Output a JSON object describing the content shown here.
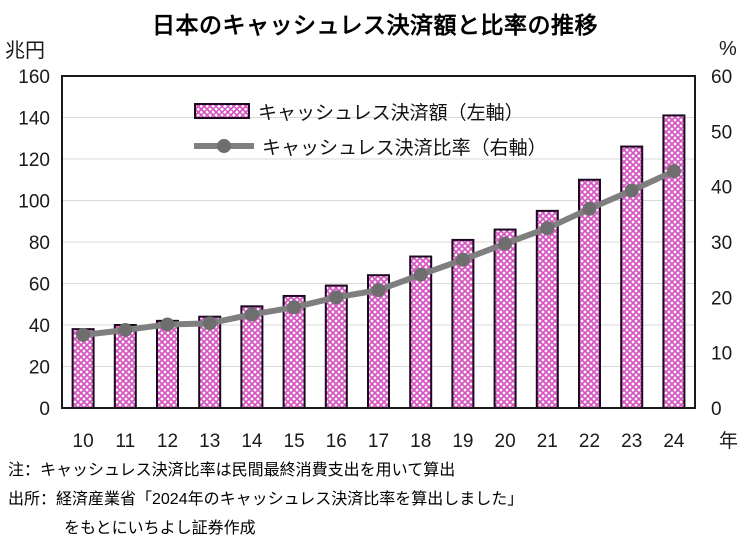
{
  "title": "日本のキャッシュレス決済額と比率の推移",
  "axes": {
    "left_unit": "兆円",
    "right_unit": "%",
    "x_unit": "年"
  },
  "legend": [
    {
      "label": "キャッシュレス決済額（左軸）",
      "swatch": "pink-pattern-bar"
    },
    {
      "label": "キャッシュレス決済比率（右軸）",
      "swatch": "gray-line-with-marker"
    }
  ],
  "chart_data": {
    "type": "bar",
    "title": "日本のキャッシュレス決済額と比率の推移",
    "categories": [
      "10",
      "11",
      "12",
      "13",
      "14",
      "15",
      "16",
      "17",
      "18",
      "19",
      "20",
      "21",
      "22",
      "23",
      "24"
    ],
    "x_label": "年",
    "series": [
      {
        "name": "キャッシュレス決済額（左軸）",
        "type": "bar",
        "axis": "left",
        "unit": "兆円",
        "values": [
          38,
          40,
          42,
          44,
          49,
          54,
          59,
          64,
          73,
          81,
          86,
          95,
          110,
          126,
          141
        ]
      },
      {
        "name": "キャッシュレス決済比率（右軸）",
        "type": "line",
        "axis": "right",
        "unit": "%",
        "values": [
          13.2,
          14.1,
          15.1,
          15.3,
          16.9,
          18.2,
          20.0,
          21.3,
          24.1,
          26.8,
          29.7,
          32.5,
          36.0,
          39.3,
          42.8
        ]
      }
    ],
    "left_axis": {
      "label": "兆円",
      "min": 0,
      "max": 160,
      "step": 20
    },
    "right_axis": {
      "label": "%",
      "min": 0,
      "max": 60,
      "step": 10
    },
    "grid": true,
    "legend_position": "top-center-inside"
  },
  "notes": {
    "line1": "注：キャッシュレス決済比率は民間最終消費支出を用いて算出",
    "line2": "出所：経済産業省「2024年のキャッシュレス決済比率を算出しました」",
    "line3": "をもとにいちよし証券作成"
  },
  "colors": {
    "bar_pattern": "#D653C1",
    "bar_border": "#1C0920",
    "line": "#7F7F7F",
    "marker": "#6E6E6E",
    "grid": "#D9D9D9",
    "plot_border": "#1A1A1A",
    "text": "#1A1A1A"
  }
}
